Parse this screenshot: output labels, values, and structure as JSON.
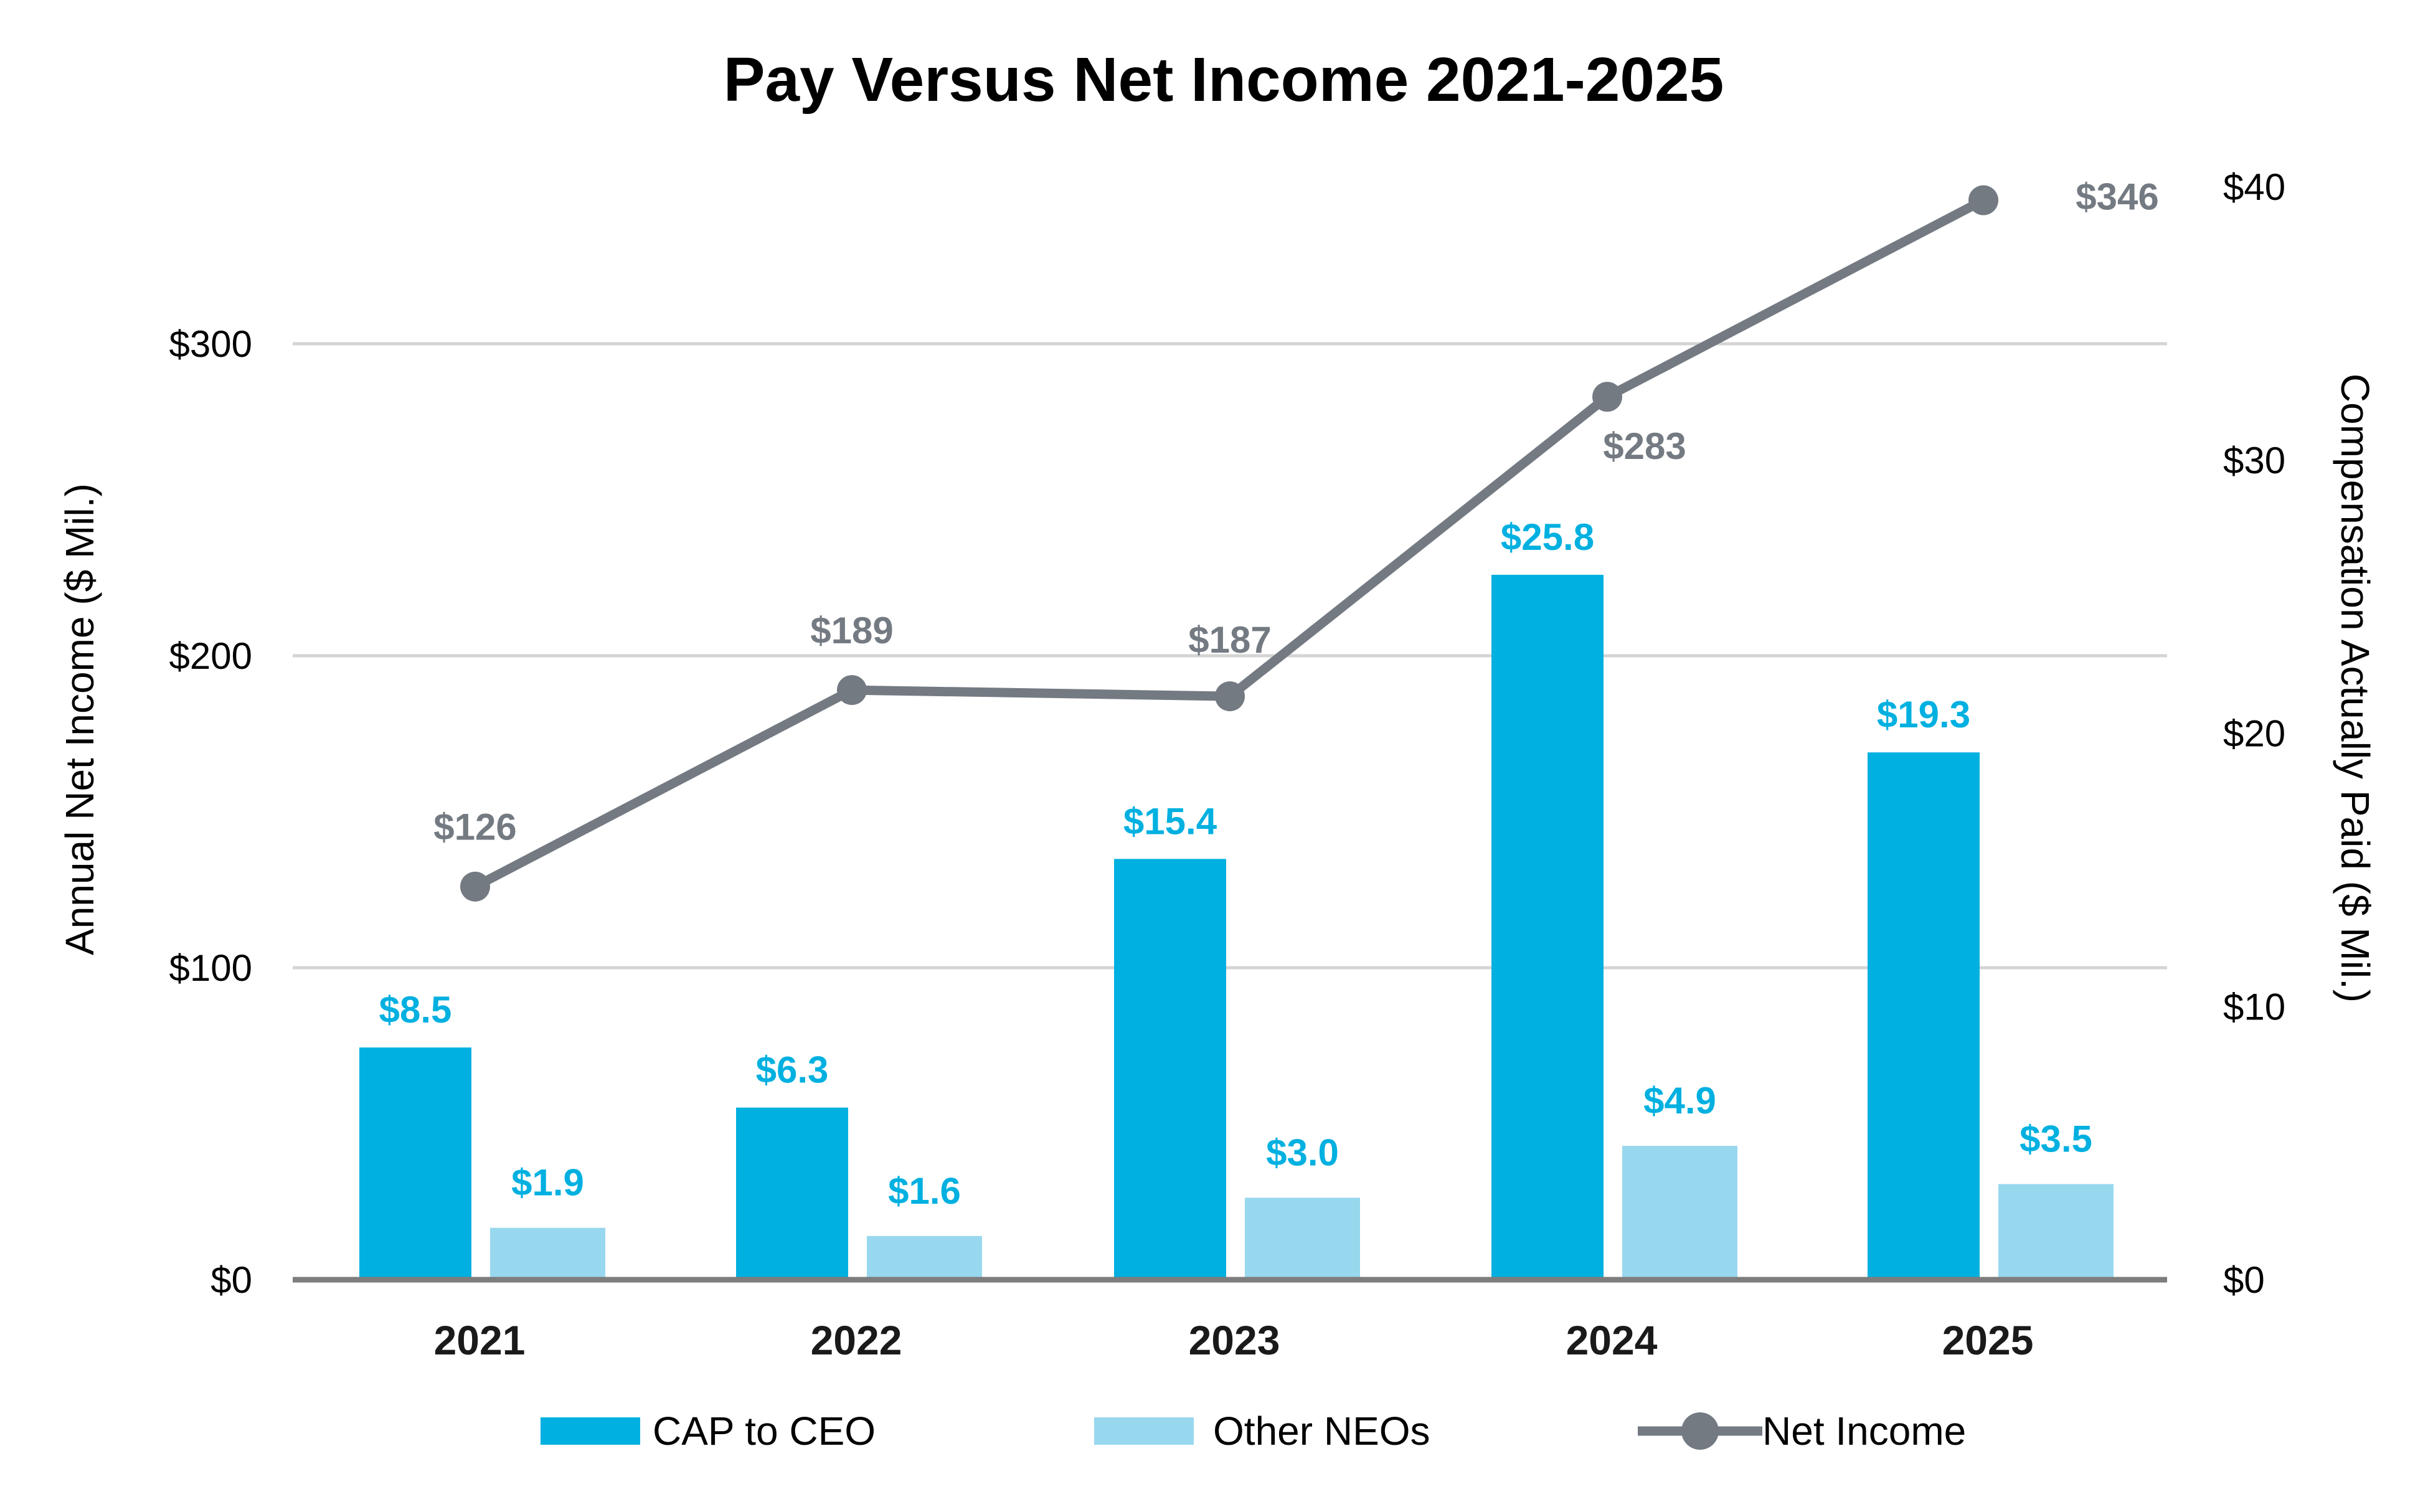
{
  "chart_data": {
    "type": "bar",
    "title": "Pay Versus Net Income 2021-2025",
    "categories": [
      "2021",
      "2022",
      "2023",
      "2024",
      "2025"
    ],
    "left_axis": {
      "label": "Annual Net Income ($ Mil.)",
      "range": [
        0,
        350
      ],
      "ticks": [
        0,
        100,
        200,
        300
      ],
      "tick_labels": [
        "$0",
        "$100",
        "$200",
        "$300"
      ]
    },
    "right_axis": {
      "label": "Compensation Actually Paid ($ Mil.)",
      "range": [
        0,
        40
      ],
      "ticks": [
        0,
        10,
        20,
        30,
        40
      ],
      "tick_labels": [
        "$0",
        "$10",
        "$20",
        "$30",
        "$40"
      ]
    },
    "series": [
      {
        "name": "CAP to CEO",
        "type": "bar",
        "axis": "right",
        "color": "#00b0e0",
        "values": [
          8.5,
          6.3,
          15.4,
          25.8,
          19.3
        ],
        "labels": [
          "$8.5",
          "$6.3",
          "$15.4",
          "$25.8",
          "$19.3"
        ]
      },
      {
        "name": "Other NEOs",
        "type": "bar",
        "axis": "right",
        "color": "#98d8ef",
        "values": [
          1.9,
          1.6,
          3.0,
          4.9,
          3.5
        ],
        "labels": [
          "$1.9",
          "$1.6",
          "$3.0",
          "$4.9",
          "$3.5"
        ]
      },
      {
        "name": "Net Income",
        "type": "line",
        "axis": "left",
        "color": "#747a82",
        "values": [
          126,
          189,
          187,
          283,
          346
        ],
        "labels": [
          "$126",
          "$189",
          "$187",
          "$283",
          "$346"
        ]
      }
    ],
    "label_color_bars": "#00b0e0",
    "label_color_line": "#747a82",
    "gridlines": true,
    "legend_position": "bottom"
  }
}
